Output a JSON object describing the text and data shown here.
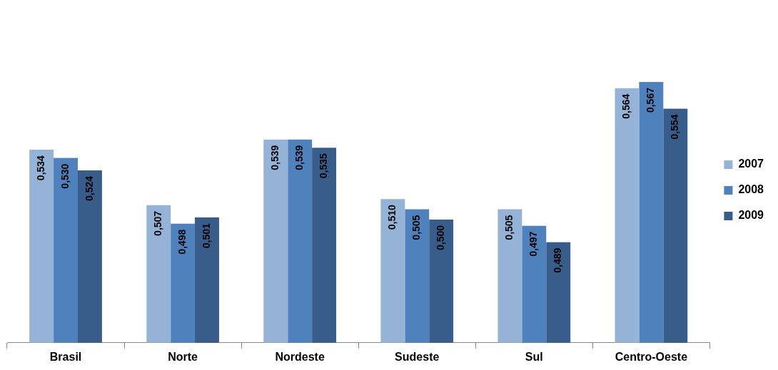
{
  "chart_data": {
    "type": "bar",
    "categories": [
      "Brasil",
      "Norte",
      "Nordeste",
      "Sudeste",
      "Sul",
      "Centro-Oeste"
    ],
    "series": [
      {
        "name": "2007",
        "color": "#95b3d7",
        "values": [
          0.534,
          0.507,
          0.539,
          0.51,
          0.505,
          0.564
        ],
        "value_labels": [
          "0,534",
          "0,507",
          "0,539",
          "0,510",
          "0,505",
          "0,564"
        ]
      },
      {
        "name": "2008",
        "color": "#4f81bd",
        "values": [
          0.53,
          0.498,
          0.539,
          0.505,
          0.497,
          0.567
        ],
        "value_labels": [
          "0,530",
          "0,498",
          "0,539",
          "0,505",
          "0,497",
          "0,567"
        ]
      },
      {
        "name": "2009",
        "color": "#385d8a",
        "values": [
          0.524,
          0.501,
          0.535,
          0.5,
          0.489,
          0.554
        ],
        "value_labels": [
          "0,524",
          "0,501",
          "0,535",
          "0,500",
          "0,489",
          "0,554"
        ]
      }
    ],
    "tick_labels": "x",
    "grid": false,
    "legend": "right"
  }
}
